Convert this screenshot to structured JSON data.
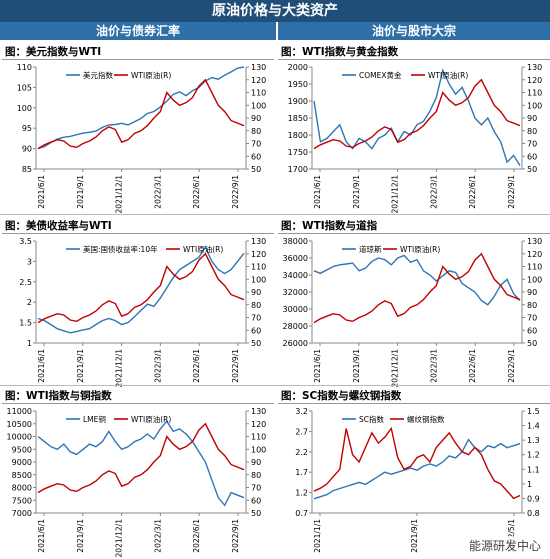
{
  "header": {
    "title": "原油价格与大类资产",
    "left_section": "油价与债券汇率",
    "right_section": "油价与股市大宗"
  },
  "watermark": "能源研发中心",
  "colors": {
    "blue": "#2e75b6",
    "red": "#c00000",
    "banner": "#1f4e79",
    "subheader": "#2f6fa8"
  },
  "chart_data": [
    {
      "type": "line",
      "title": "图：美元指数与WTI",
      "x_ticks": [
        "2021/6/1",
        "2021/9/1",
        "2021/12/1",
        "2022/3/1",
        "2022/6/1",
        "2022/9/1"
      ],
      "left_axis": {
        "min": 85,
        "max": 110,
        "ticks": [
          85,
          90,
          95,
          100,
          105,
          110
        ]
      },
      "right_axis": {
        "min": 50,
        "max": 130,
        "ticks": [
          50,
          60,
          70,
          80,
          90,
          100,
          110,
          120,
          130
        ]
      },
      "series": [
        {
          "name": "美元指数",
          "axis": "left",
          "color": "#2e75b6",
          "values": [
            90,
            90.5,
            91.5,
            92.3,
            92.8,
            93.0,
            93.4,
            93.8,
            94.0,
            94.3,
            95.2,
            95.8,
            95.9,
            96.2,
            95.8,
            96.6,
            97.4,
            98.6,
            99.1,
            100.2,
            101.6,
            103.3,
            103.9,
            103.0,
            104.2,
            105.0,
            106.6,
            107.4,
            107.0,
            108.0,
            108.8,
            109.7,
            110.0
          ]
        },
        {
          "name": "WTI原油(R)",
          "axis": "right",
          "color": "#c00000",
          "values": [
            66,
            69,
            71,
            73,
            72,
            68,
            67,
            70,
            72,
            75,
            80,
            83,
            81,
            71,
            73,
            78,
            80,
            84,
            90,
            95,
            110,
            104,
            100,
            102,
            106,
            115,
            120,
            110,
            100,
            95,
            88,
            86,
            84
          ]
        }
      ]
    },
    {
      "type": "line",
      "title": "图：WTI指数与黄金指数",
      "x_ticks": [
        "2021/6/1",
        "2021/9/1",
        "2021/12/1",
        "2022/3/1",
        "2022/6/1",
        "2022/9/1"
      ],
      "left_axis": {
        "min": 1700,
        "max": 2000,
        "ticks": [
          1700,
          1750,
          1800,
          1850,
          1900,
          1950,
          2000
        ]
      },
      "right_axis": {
        "min": 50,
        "max": 130,
        "ticks": [
          50,
          60,
          70,
          80,
          90,
          100,
          110,
          120,
          130
        ]
      },
      "series": [
        {
          "name": "COMEX黄金",
          "axis": "left",
          "color": "#2e75b6",
          "values": [
            1900,
            1780,
            1790,
            1810,
            1830,
            1780,
            1760,
            1790,
            1780,
            1760,
            1790,
            1800,
            1820,
            1780,
            1810,
            1800,
            1830,
            1840,
            1870,
            1910,
            1990,
            1950,
            1920,
            1940,
            1900,
            1850,
            1830,
            1850,
            1810,
            1780,
            1720,
            1740,
            1710
          ]
        },
        {
          "name": "WTI原油(R)",
          "axis": "right",
          "color": "#c00000",
          "values": [
            66,
            69,
            71,
            73,
            72,
            68,
            67,
            70,
            72,
            75,
            80,
            83,
            81,
            71,
            73,
            78,
            80,
            84,
            90,
            95,
            110,
            104,
            100,
            102,
            106,
            115,
            120,
            110,
            100,
            95,
            88,
            86,
            84
          ]
        }
      ]
    },
    {
      "type": "line",
      "title": "图：美债收益率与WTI",
      "x_ticks": [
        "2021/6/1",
        "2021/9/1",
        "2021/12/1",
        "2022/3/1",
        "2022/6/1",
        "2022/9/1"
      ],
      "left_axis": {
        "min": 1,
        "max": 3.5,
        "ticks": [
          1,
          1.5,
          2,
          2.5,
          3,
          3.5
        ]
      },
      "right_axis": {
        "min": 50,
        "max": 130,
        "ticks": [
          50,
          60,
          70,
          80,
          90,
          100,
          110,
          120,
          130
        ]
      },
      "series": [
        {
          "name": "美国:国债收益率:10年",
          "axis": "left",
          "color": "#2e75b6",
          "values": [
            1.6,
            1.55,
            1.45,
            1.35,
            1.3,
            1.25,
            1.28,
            1.32,
            1.35,
            1.45,
            1.55,
            1.6,
            1.55,
            1.45,
            1.5,
            1.65,
            1.8,
            1.95,
            1.9,
            2.1,
            2.35,
            2.6,
            2.8,
            2.9,
            3.0,
            3.1,
            3.35,
            3.0,
            2.8,
            2.7,
            2.8,
            3.0,
            3.2
          ]
        },
        {
          "name": "WTI原油(R)",
          "axis": "right",
          "color": "#c00000",
          "values": [
            66,
            69,
            71,
            73,
            72,
            68,
            67,
            70,
            72,
            75,
            80,
            83,
            81,
            71,
            73,
            78,
            80,
            84,
            90,
            95,
            110,
            104,
            100,
            102,
            106,
            115,
            120,
            110,
            100,
            95,
            88,
            86,
            84
          ]
        }
      ]
    },
    {
      "type": "line",
      "title": "图：WTI指数与道指",
      "x_ticks": [
        "2021/6/1",
        "2021/9/1",
        "2021/12/1",
        "2022/3/1",
        "2022/6/1",
        "2022/9/1"
      ],
      "left_axis": {
        "min": 26000,
        "max": 38000,
        "ticks": [
          26000,
          28000,
          30000,
          32000,
          34000,
          36000,
          38000
        ]
      },
      "right_axis": {
        "min": 50,
        "max": 130,
        "ticks": [
          50,
          60,
          70,
          80,
          90,
          100,
          110,
          120,
          130
        ]
      },
      "series": [
        {
          "name": "道琼斯",
          "axis": "left",
          "color": "#2e75b6",
          "values": [
            34500,
            34200,
            34600,
            35000,
            35200,
            35300,
            35400,
            34500,
            34800,
            35600,
            36000,
            35800,
            35200,
            36000,
            36300,
            35500,
            35800,
            34500,
            34000,
            33300,
            33900,
            34500,
            34300,
            33000,
            32500,
            32000,
            31000,
            30500,
            31500,
            32800,
            33500,
            31800,
            31000
          ]
        },
        {
          "name": "WTI原油(R)",
          "axis": "right",
          "color": "#c00000",
          "values": [
            66,
            69,
            71,
            73,
            72,
            68,
            67,
            70,
            72,
            75,
            80,
            83,
            81,
            71,
            73,
            78,
            80,
            84,
            90,
            95,
            110,
            104,
            100,
            102,
            106,
            115,
            120,
            110,
            100,
            95,
            88,
            86,
            84
          ]
        }
      ]
    },
    {
      "type": "line",
      "title": "图：WTI指数与铜指数",
      "x_ticks": [
        "2021/6/1",
        "2021/9/1",
        "2021/12/1",
        "2022/3/1",
        "2022/6/1",
        "2022/9/1"
      ],
      "left_axis": {
        "min": 7000,
        "max": 11000,
        "ticks": [
          7000,
          7500,
          8000,
          8500,
          9000,
          9500,
          10000,
          10500,
          11000
        ]
      },
      "right_axis": {
        "min": 50,
        "max": 130,
        "ticks": [
          50,
          60,
          70,
          80,
          90,
          100,
          110,
          120,
          130
        ]
      },
      "series": [
        {
          "name": "LME铜",
          "axis": "left",
          "color": "#2e75b6",
          "values": [
            10000,
            9800,
            9600,
            9500,
            9700,
            9400,
            9300,
            9500,
            9700,
            9600,
            9800,
            10200,
            9800,
            9500,
            9600,
            9800,
            9900,
            10100,
            9900,
            10300,
            10600,
            10200,
            10300,
            10100,
            9800,
            9400,
            9000,
            8300,
            7600,
            7300,
            7800,
            7700,
            7600
          ]
        },
        {
          "name": "WTI原油(R)",
          "axis": "right",
          "color": "#c00000",
          "values": [
            66,
            69,
            71,
            73,
            72,
            68,
            67,
            70,
            72,
            75,
            80,
            83,
            81,
            71,
            73,
            78,
            80,
            84,
            90,
            95,
            110,
            104,
            100,
            102,
            106,
            115,
            120,
            110,
            100,
            95,
            88,
            86,
            84
          ]
        }
      ]
    },
    {
      "type": "line",
      "title": "图：SC指数与螺纹钢指数",
      "x_ticks": [
        "2021/1/1",
        "2021/9/1",
        "2022/5/1"
      ],
      "left_axis": {
        "min": 0.7,
        "max": 3.2,
        "ticks": [
          0.7,
          1.2,
          1.7,
          2.2,
          2.7,
          3.2
        ]
      },
      "right_axis": {
        "min": 0.8,
        "max": 1.5,
        "ticks": [
          0.8,
          0.9,
          1.0,
          1.1,
          1.2,
          1.3,
          1.4,
          1.5
        ]
      },
      "series": [
        {
          "name": "SC指数",
          "axis": "left",
          "color": "#2e75b6",
          "values": [
            1.05,
            1.1,
            1.15,
            1.25,
            1.3,
            1.35,
            1.4,
            1.45,
            1.4,
            1.5,
            1.6,
            1.7,
            1.65,
            1.7,
            1.75,
            1.8,
            1.75,
            1.85,
            1.9,
            1.85,
            1.95,
            2.1,
            2.05,
            2.2,
            2.5,
            2.3,
            2.2,
            2.35,
            2.3,
            2.4,
            2.3,
            2.35,
            2.4
          ]
        },
        {
          "name": "螺纹钢指数",
          "axis": "right",
          "color": "#c00000",
          "values": [
            0.95,
            0.97,
            1.0,
            1.05,
            1.1,
            1.38,
            1.2,
            1.15,
            1.25,
            1.35,
            1.28,
            1.32,
            1.38,
            1.18,
            1.1,
            1.12,
            1.18,
            1.2,
            1.15,
            1.25,
            1.3,
            1.35,
            1.28,
            1.22,
            1.2,
            1.25,
            1.2,
            1.1,
            1.02,
            1.0,
            0.95,
            0.9,
            0.92
          ]
        }
      ]
    }
  ]
}
